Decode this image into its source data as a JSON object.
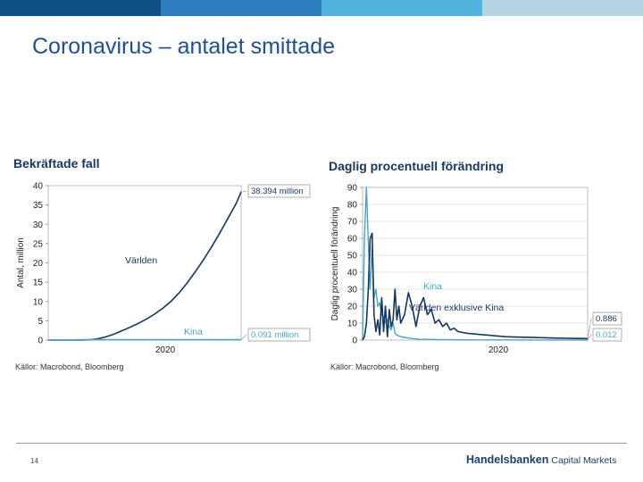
{
  "slide": {
    "title": "Coronavirus – antalet smittade",
    "page_number": "14"
  },
  "brand": {
    "name": "Handelsbanken",
    "suffix": "Capital Markets",
    "colors": {
      "dark_blue": "#0f4f86",
      "blue": "#2f7fc0",
      "light_blue": "#4fb3dc",
      "pale_blue": "#b7d4e3",
      "title_blue": "#1f4f8c"
    }
  },
  "chart_data": [
    {
      "type": "line",
      "title": "Bekräftade fall",
      "xlabel": "2020",
      "ylabel": "Antal, million",
      "ylim": [
        0,
        40
      ],
      "yticks": [
        0,
        5,
        10,
        15,
        20,
        25,
        30,
        35,
        40
      ],
      "x_tick_label": "2020",
      "source": "Källor: Macrobond, Bloomberg",
      "series": [
        {
          "name": "Världen",
          "color": "#17365d",
          "end_label": "38.394 million",
          "points": [
            [
              0,
              0
            ],
            [
              10,
              0
            ],
            [
              20,
              0.01
            ],
            [
              25,
              0.08
            ],
            [
              30,
              0.3
            ],
            [
              35,
              0.8
            ],
            [
              40,
              1.5
            ],
            [
              45,
              2.4
            ],
            [
              50,
              3.3
            ],
            [
              55,
              4.3
            ],
            [
              60,
              5.4
            ],
            [
              65,
              6.7
            ],
            [
              70,
              8.2
            ],
            [
              75,
              10.0
            ],
            [
              80,
              12.2
            ],
            [
              85,
              14.8
            ],
            [
              90,
              17.7
            ],
            [
              95,
              20.8
            ],
            [
              100,
              24.2
            ],
            [
              105,
              27.8
            ],
            [
              110,
              31.6
            ],
            [
              115,
              35.4
            ],
            [
              118,
              38.394
            ]
          ]
        },
        {
          "name": "Kina",
          "color": "#4aa3c8",
          "end_label": "0.091 million",
          "points": [
            [
              0,
              0
            ],
            [
              10,
              0
            ],
            [
              20,
              0.09
            ],
            [
              60,
              0.091
            ],
            [
              118,
              0.091
            ]
          ]
        }
      ]
    },
    {
      "type": "line",
      "title": "Daglig procentuell förändring",
      "xlabel": "2020",
      "ylabel": "Daglig procentuell förändring",
      "ylim": [
        0,
        90
      ],
      "yticks": [
        0,
        10,
        20,
        30,
        40,
        50,
        60,
        70,
        80,
        90
      ],
      "x_tick_label": "2020",
      "source": "Källor: Macrobond, Bloomberg",
      "series": [
        {
          "name": "Kina",
          "color": "#4aa3c8",
          "end_label": "0.012",
          "points": [
            [
              0,
              0
            ],
            [
              1,
              60
            ],
            [
              2,
              90
            ],
            [
              3,
              58
            ],
            [
              4,
              30
            ],
            [
              5,
              55
            ],
            [
              6,
              25
            ],
            [
              7,
              30
            ],
            [
              8,
              20
            ],
            [
              9,
              22
            ],
            [
              10,
              15
            ],
            [
              11,
              14
            ],
            [
              12,
              10
            ],
            [
              13,
              12
            ],
            [
              14,
              8
            ],
            [
              15,
              6
            ],
            [
              16,
              10
            ],
            [
              17,
              4
            ],
            [
              18,
              3
            ],
            [
              20,
              2
            ],
            [
              25,
              1
            ],
            [
              30,
              0.5
            ],
            [
              40,
              0.3
            ],
            [
              60,
              0.1
            ],
            [
              100,
              0.05
            ],
            [
              118,
              0.012
            ]
          ]
        },
        {
          "name": "Världen exklusive Kina",
          "color": "#17365d",
          "end_label": "0.886",
          "points": [
            [
              0,
              0
            ],
            [
              1,
              2
            ],
            [
              2,
              10
            ],
            [
              3,
              30
            ],
            [
              4,
              60
            ],
            [
              5,
              63
            ],
            [
              6,
              15
            ],
            [
              7,
              5
            ],
            [
              8,
              12
            ],
            [
              9,
              3
            ],
            [
              10,
              25
            ],
            [
              11,
              5
            ],
            [
              12,
              20
            ],
            [
              13,
              2
            ],
            [
              14,
              18
            ],
            [
              15,
              8
            ],
            [
              16,
              12
            ],
            [
              17,
              30
            ],
            [
              18,
              12
            ],
            [
              19,
              20
            ],
            [
              20,
              10
            ],
            [
              22,
              15
            ],
            [
              24,
              28
            ],
            [
              26,
              20
            ],
            [
              28,
              8
            ],
            [
              30,
              20
            ],
            [
              32,
              25
            ],
            [
              34,
              15
            ],
            [
              36,
              18
            ],
            [
              38,
              10
            ],
            [
              40,
              12
            ],
            [
              42,
              8
            ],
            [
              44,
              10
            ],
            [
              46,
              6
            ],
            [
              48,
              7
            ],
            [
              50,
              5
            ],
            [
              55,
              4
            ],
            [
              60,
              3.5
            ],
            [
              65,
              3
            ],
            [
              70,
              2.5
            ],
            [
              75,
              2
            ],
            [
              80,
              1.8
            ],
            [
              90,
              1.5
            ],
            [
              100,
              1.2
            ],
            [
              110,
              1
            ],
            [
              118,
              0.886
            ]
          ]
        }
      ]
    }
  ]
}
